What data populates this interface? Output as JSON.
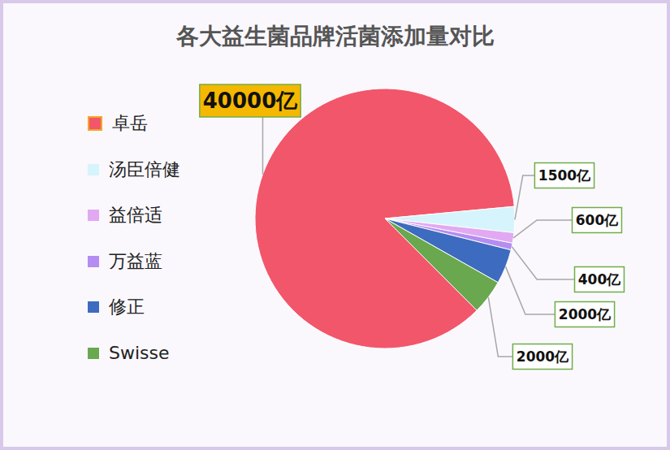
{
  "chart_data": {
    "type": "pie",
    "title": "各大益生菌品牌活菌添加量对比",
    "categories": [
      "卓岳",
      "汤臣倍健",
      "益倍适",
      "万益蓝",
      "修正",
      "Swisse"
    ],
    "values": [
      40000,
      1500,
      600,
      400,
      2000,
      2000
    ],
    "value_labels": [
      "40000亿",
      "1500亿",
      "600亿",
      "400亿",
      "2000亿",
      "2000亿"
    ],
    "colors": [
      "#f2566b",
      "#d6f4fb",
      "#e2a9f3",
      "#b48cf2",
      "#3d6bbf",
      "#6aa84f"
    ],
    "legend": "left",
    "data_labels": true
  }
}
